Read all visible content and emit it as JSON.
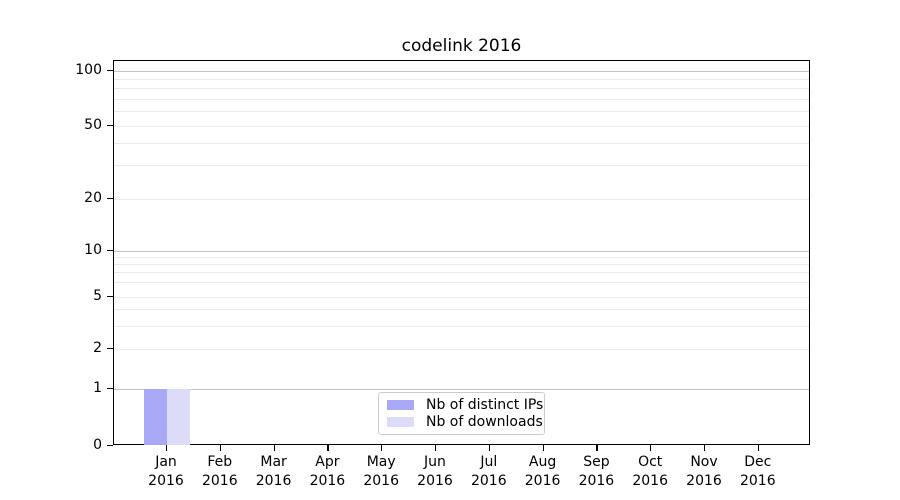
{
  "chart_data": {
    "type": "bar",
    "title": "codelink 2016",
    "categories": [
      "Jan 2016",
      "Feb 2016",
      "Mar 2016",
      "Apr 2016",
      "May 2016",
      "Jun 2016",
      "Jul 2016",
      "Aug 2016",
      "Sep 2016",
      "Oct 2016",
      "Nov 2016",
      "Dec 2016"
    ],
    "x_tick_line1": [
      "Jan",
      "Feb",
      "Mar",
      "Apr",
      "May",
      "Jun",
      "Jul",
      "Aug",
      "Sep",
      "Oct",
      "Nov",
      "Dec"
    ],
    "x_tick_line2": "2016",
    "series": [
      {
        "name": "Nb of distinct IPs",
        "color": "#a8a8f6",
        "values": [
          1,
          0,
          0,
          0,
          0,
          0,
          0,
          0,
          0,
          0,
          0,
          0
        ]
      },
      {
        "name": "Nb of downloads",
        "color": "#dcdcf9",
        "values": [
          1,
          0,
          0,
          0,
          0,
          0,
          0,
          0,
          0,
          0,
          0,
          0
        ]
      }
    ],
    "xlabel": "",
    "ylabel": "",
    "y_scale": "symlog",
    "y_ticks": [
      0,
      1,
      2,
      5,
      10,
      20,
      50,
      100
    ],
    "ylim": [
      0,
      114
    ],
    "grid": true,
    "grid_major_color": "#c4c4c4",
    "grid_minor_color": "#eaeaea",
    "legend_position": "lower center"
  }
}
